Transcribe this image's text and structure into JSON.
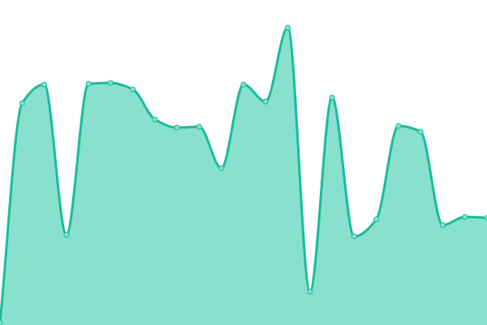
{
  "chart_data": {
    "type": "area",
    "title": "",
    "xlabel": "",
    "ylabel": "",
    "x": [
      0,
      1,
      2,
      3,
      4,
      5,
      6,
      7,
      8,
      9,
      10,
      11,
      12,
      13,
      14,
      15,
      16,
      17,
      18,
      19,
      20,
      21,
      22
    ],
    "values": [
      3,
      273,
      296,
      111,
      297,
      298,
      290,
      253,
      243,
      244,
      193,
      296,
      275,
      366,
      41,
      280,
      109,
      130,
      245,
      238,
      123,
      133,
      132
    ],
    "ylim": [
      0,
      400
    ],
    "grid": false,
    "axes_visible": false,
    "curve": "smooth",
    "colors": {
      "line": "#1abc9c",
      "fill": "#88e0cf",
      "marker": "#88e0cf"
    }
  }
}
